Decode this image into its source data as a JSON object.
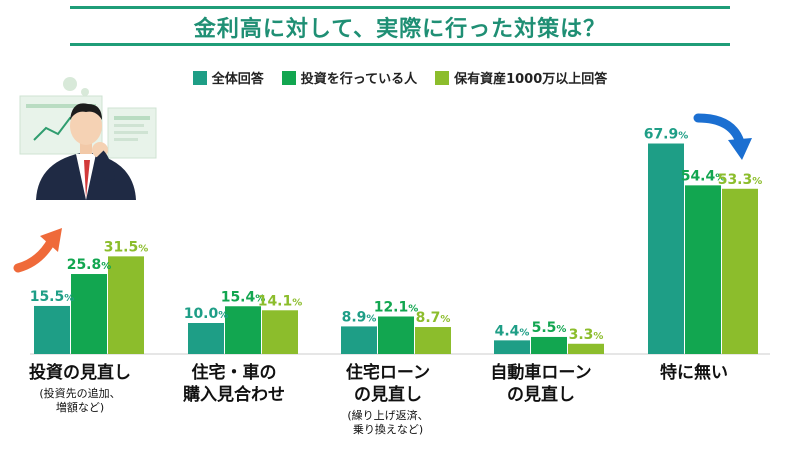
{
  "title": "金利高に対して、実際に行った対策は？",
  "colors": {
    "title": "#1f8f74",
    "series": [
      "#1e9e86",
      "#12a650",
      "#8cbd2c"
    ]
  },
  "chart_data": {
    "type": "bar",
    "title": "金利高に対して、実際に行った対策は？",
    "legend_position": "top",
    "series": [
      {
        "name": "全体回答",
        "values": [
          15.5,
          10.0,
          8.9,
          4.4,
          67.9
        ]
      },
      {
        "name": "投資を行っている人",
        "values": [
          25.8,
          15.4,
          12.1,
          5.5,
          54.4
        ]
      },
      {
        "name": "保有資産1000万以上回答",
        "values": [
          31.5,
          14.1,
          8.7,
          3.3,
          53.3
        ]
      }
    ],
    "categories": [
      {
        "label": "投資の見直し",
        "sub": "(投資先の追加、\n増額など)"
      },
      {
        "label": "住宅・車の\n購入見合わせ",
        "sub": ""
      },
      {
        "label": "住宅ローン\nの見直し",
        "sub": "(繰り上げ返済、\n乗り換えなど)"
      },
      {
        "label": "自動車ローン\nの見直し",
        "sub": ""
      },
      {
        "label": "特に無い",
        "sub": ""
      }
    ],
    "value_suffix": "%"
  }
}
